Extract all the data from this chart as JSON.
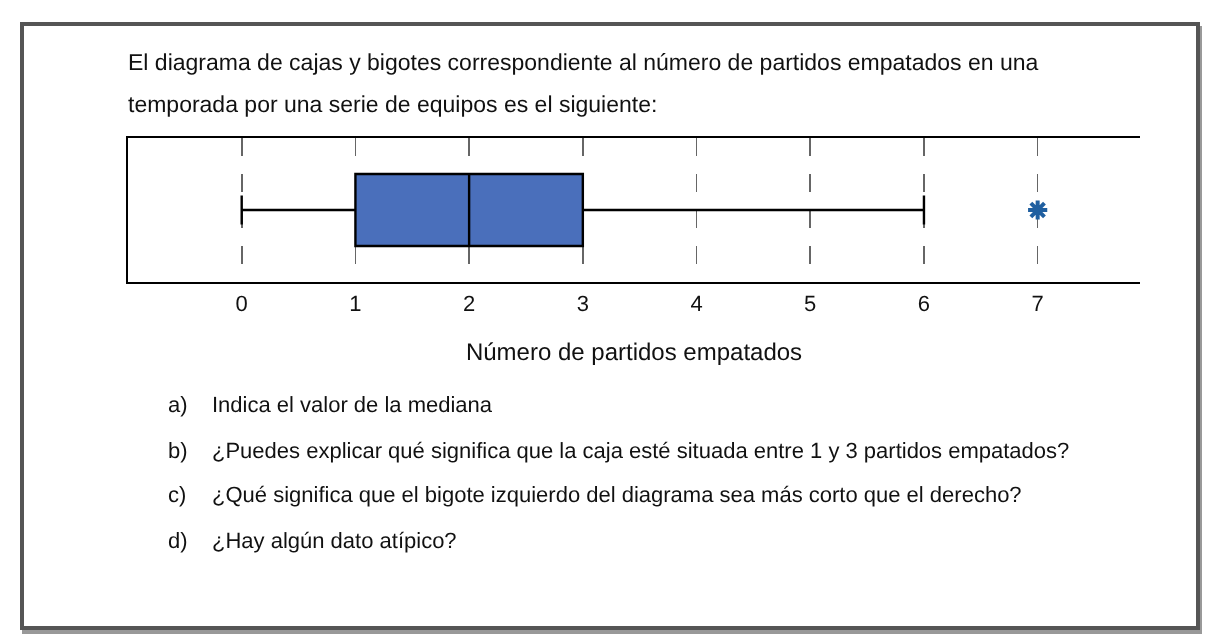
{
  "chart_data": {
    "type": "box",
    "title": "El diagrama de cajas y bigotes correspondiente al número de partidos empatados en una temporada por una serie de equipos es el siguiente:",
    "xlabel": "Número de partidos empatados",
    "orientation": "horizontal",
    "categories": [
      null
    ],
    "boxes": [
      {
        "low": 0,
        "q1": 1,
        "median": 2,
        "q3": 3,
        "high": 6,
        "outliers": [
          7
        ]
      }
    ],
    "color": "#4a6fbb",
    "xlim": [
      -1,
      7.9
    ],
    "xticks": [
      0,
      1,
      2,
      3,
      4,
      5,
      6,
      7
    ],
    "grid": "x",
    "tick_labels": "x",
    "annotations": [
      "a) Indica el valor de la mediana",
      "b) ¿Puedes explicar qué significa que la caja esté situada entre 1 y 3 partidos empatados?",
      "c) ¿Qué significa que el bigote izquierdo del diagrama sea más corto que el derecho?",
      "d) ¿Hay algún dato atípico?"
    ]
  }
}
